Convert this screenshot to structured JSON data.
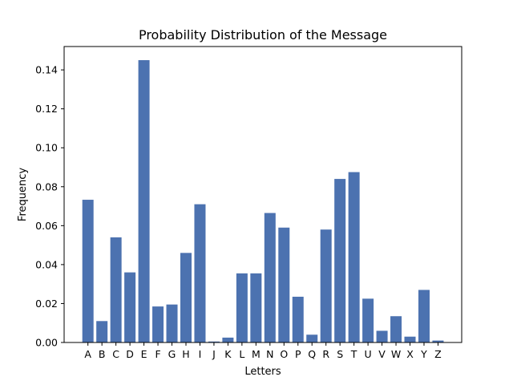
{
  "chart_data": {
    "type": "bar",
    "title": "Probability Distribution of the Message",
    "xlabel": "Letters",
    "ylabel": "Frequency",
    "categories": [
      "A",
      "B",
      "C",
      "D",
      "E",
      "F",
      "G",
      "H",
      "I",
      "J",
      "K",
      "L",
      "M",
      "N",
      "O",
      "P",
      "Q",
      "R",
      "S",
      "T",
      "U",
      "V",
      "W",
      "X",
      "Y",
      "Z"
    ],
    "values": [
      0.0733,
      0.011,
      0.054,
      0.036,
      0.145,
      0.0185,
      0.0195,
      0.046,
      0.071,
      0.0005,
      0.0025,
      0.0355,
      0.0355,
      0.0665,
      0.059,
      0.0235,
      0.004,
      0.058,
      0.084,
      0.0875,
      0.0225,
      0.006,
      0.0135,
      0.003,
      0.027,
      0.001
    ],
    "ylim": [
      0,
      0.152
    ],
    "yticks": [
      0.0,
      0.02,
      0.04,
      0.06,
      0.08,
      0.1,
      0.12,
      0.14
    ],
    "ytick_labels": [
      "0.00",
      "0.02",
      "0.04",
      "0.06",
      "0.08",
      "0.10",
      "0.12",
      "0.14"
    ],
    "bar_color": "#4c72b0",
    "grid": false,
    "legend": "none"
  }
}
